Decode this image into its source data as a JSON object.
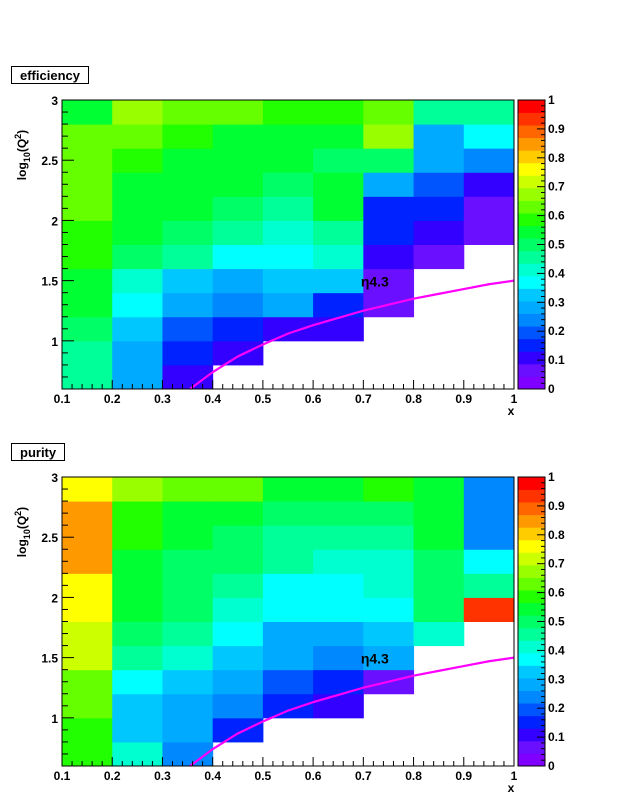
{
  "chart_data": [
    {
      "type": "heatmap",
      "title": "efficiency",
      "xlabel": "x",
      "ylabel_base": "log",
      "ylabel_sub": "10",
      "ylabel_mid": "(Q",
      "ylabel_sup": "2",
      "ylabel_end": ")",
      "xlim": [
        0.1,
        1.0
      ],
      "ylim": [
        0.6,
        3.0
      ],
      "x_edges": [
        0.1,
        0.2,
        0.3,
        0.4,
        0.5,
        0.6,
        0.7,
        0.8,
        0.9,
        1.0
      ],
      "y_edges": [
        0.6,
        0.8,
        1.0,
        1.2,
        1.4,
        1.6,
        1.8,
        2.0,
        2.2,
        2.4,
        2.6,
        2.8,
        3.0
      ],
      "x_ticks": [
        "0.1",
        "0.2",
        "0.3",
        "0.4",
        "0.5",
        "0.6",
        "0.7",
        "0.8",
        "0.9",
        "1"
      ],
      "y_ticks": [
        "1",
        "1.5",
        "2",
        "2.5",
        "3"
      ],
      "z_ticks": [
        "0",
        "0.1",
        "0.2",
        "0.3",
        "0.4",
        "0.5",
        "0.6",
        "0.7",
        "0.8",
        "0.9",
        "1"
      ],
      "zlim": [
        0,
        1
      ],
      "values": [
        [
          0.45,
          0.27,
          0.1,
          null,
          null,
          null,
          null,
          null,
          null
        ],
        [
          0.45,
          0.27,
          0.15,
          0.1,
          null,
          null,
          null,
          null,
          null
        ],
        [
          0.5,
          0.32,
          0.2,
          0.15,
          0.12,
          0.1,
          null,
          null,
          null
        ],
        [
          0.55,
          0.37,
          0.27,
          0.22,
          0.27,
          0.15,
          0.05,
          null,
          null
        ],
        [
          0.55,
          0.42,
          0.32,
          0.27,
          0.32,
          0.32,
          0.05,
          null,
          null
        ],
        [
          0.6,
          0.5,
          0.47,
          0.35,
          0.35,
          0.4,
          0.12,
          0.05,
          null
        ],
        [
          0.6,
          0.55,
          0.5,
          0.45,
          0.4,
          0.45,
          0.15,
          0.1,
          0.05
        ],
        [
          0.65,
          0.55,
          0.55,
          0.5,
          0.45,
          0.55,
          0.17,
          0.17,
          0.05
        ],
        [
          0.65,
          0.55,
          0.55,
          0.55,
          0.5,
          0.55,
          0.27,
          0.2,
          0.1
        ],
        [
          0.65,
          0.6,
          0.55,
          0.55,
          0.55,
          0.5,
          0.5,
          0.27,
          0.22
        ],
        [
          0.62,
          0.62,
          0.6,
          0.55,
          0.55,
          0.55,
          0.67,
          0.27,
          0.35
        ],
        [
          0.55,
          0.67,
          0.62,
          0.62,
          0.6,
          0.6,
          0.65,
          0.45,
          0.45
        ]
      ],
      "curve_label": "η4.3",
      "curve": {
        "x": [
          0.355,
          0.4,
          0.45,
          0.5,
          0.55,
          0.6,
          0.65,
          0.7,
          0.75,
          0.8,
          0.85,
          0.9,
          0.95,
          1.0
        ],
        "y": [
          0.6,
          0.74,
          0.87,
          0.97,
          1.06,
          1.13,
          1.19,
          1.25,
          1.3,
          1.35,
          1.39,
          1.43,
          1.47,
          1.5
        ]
      },
      "curve_color": "#ff00ff"
    },
    {
      "type": "heatmap",
      "title": "purity",
      "xlabel": "x",
      "ylabel_base": "log",
      "ylabel_sub": "10",
      "ylabel_mid": "(Q",
      "ylabel_sup": "2",
      "ylabel_end": ")",
      "xlim": [
        0.1,
        1.0
      ],
      "ylim": [
        0.6,
        3.0
      ],
      "x_edges": [
        0.1,
        0.2,
        0.3,
        0.4,
        0.5,
        0.6,
        0.7,
        0.8,
        0.9,
        1.0
      ],
      "y_edges": [
        0.6,
        0.8,
        1.0,
        1.2,
        1.4,
        1.6,
        1.8,
        2.0,
        2.2,
        2.4,
        2.6,
        2.8,
        3.0
      ],
      "x_ticks": [
        "0.1",
        "0.2",
        "0.3",
        "0.4",
        "0.5",
        "0.6",
        "0.7",
        "0.8",
        "0.9",
        "1"
      ],
      "y_ticks": [
        "1",
        "1.5",
        "2",
        "2.5",
        "3"
      ],
      "z_ticks": [
        "0",
        "0.1",
        "0.2",
        "0.3",
        "0.4",
        "0.5",
        "0.6",
        "0.7",
        "0.8",
        "0.9",
        "1"
      ],
      "zlim": [
        0,
        1
      ],
      "values": [
        [
          0.6,
          0.4,
          0.25,
          null,
          null,
          null,
          null,
          null,
          null
        ],
        [
          0.6,
          0.32,
          0.27,
          0.15,
          null,
          null,
          null,
          null,
          null
        ],
        [
          0.62,
          0.32,
          0.27,
          0.22,
          0.17,
          0.1,
          null,
          null,
          null
        ],
        [
          0.65,
          0.37,
          0.32,
          0.27,
          0.2,
          0.15,
          0.05,
          null,
          null
        ],
        [
          0.7,
          0.45,
          0.4,
          0.32,
          0.27,
          0.22,
          0.27,
          null,
          null
        ],
        [
          0.7,
          0.5,
          0.47,
          0.35,
          0.27,
          0.27,
          0.32,
          0.4,
          null
        ],
        [
          0.75,
          0.55,
          0.5,
          0.4,
          0.35,
          0.35,
          0.35,
          0.5,
          0.95
        ],
        [
          0.75,
          0.55,
          0.5,
          0.45,
          0.37,
          0.37,
          0.4,
          0.5,
          0.45
        ],
        [
          0.85,
          0.55,
          0.5,
          0.5,
          0.45,
          0.42,
          0.4,
          0.5,
          0.37
        ],
        [
          0.85,
          0.6,
          0.55,
          0.5,
          0.47,
          0.45,
          0.47,
          0.55,
          0.25
        ],
        [
          0.85,
          0.6,
          0.55,
          0.55,
          0.5,
          0.5,
          0.5,
          0.55,
          0.25
        ],
        [
          0.75,
          0.67,
          0.62,
          0.62,
          0.55,
          0.55,
          0.57,
          0.55,
          0.25
        ]
      ],
      "curve_label": "η4.3",
      "curve": {
        "x": [
          0.355,
          0.4,
          0.45,
          0.5,
          0.55,
          0.6,
          0.65,
          0.7,
          0.75,
          0.8,
          0.85,
          0.9,
          0.95,
          1.0
        ],
        "y": [
          0.6,
          0.74,
          0.87,
          0.97,
          1.06,
          1.13,
          1.19,
          1.25,
          1.3,
          1.35,
          1.39,
          1.43,
          1.47,
          1.5
        ]
      },
      "curve_color": "#ff00ff"
    }
  ],
  "palette": [
    "#7f00ff",
    "#6a0fff",
    "#3300ff",
    "#0022ff",
    "#0055ff",
    "#0088ff",
    "#00aaff",
    "#00c8ff",
    "#00ffff",
    "#00ffd0",
    "#00ff99",
    "#00ff66",
    "#00ff33",
    "#22ff00",
    "#66ff00",
    "#99ff00",
    "#ccff00",
    "#ffff00",
    "#ffcc00",
    "#ff9900",
    "#ff6600",
    "#ff3300",
    "#ff0000"
  ]
}
